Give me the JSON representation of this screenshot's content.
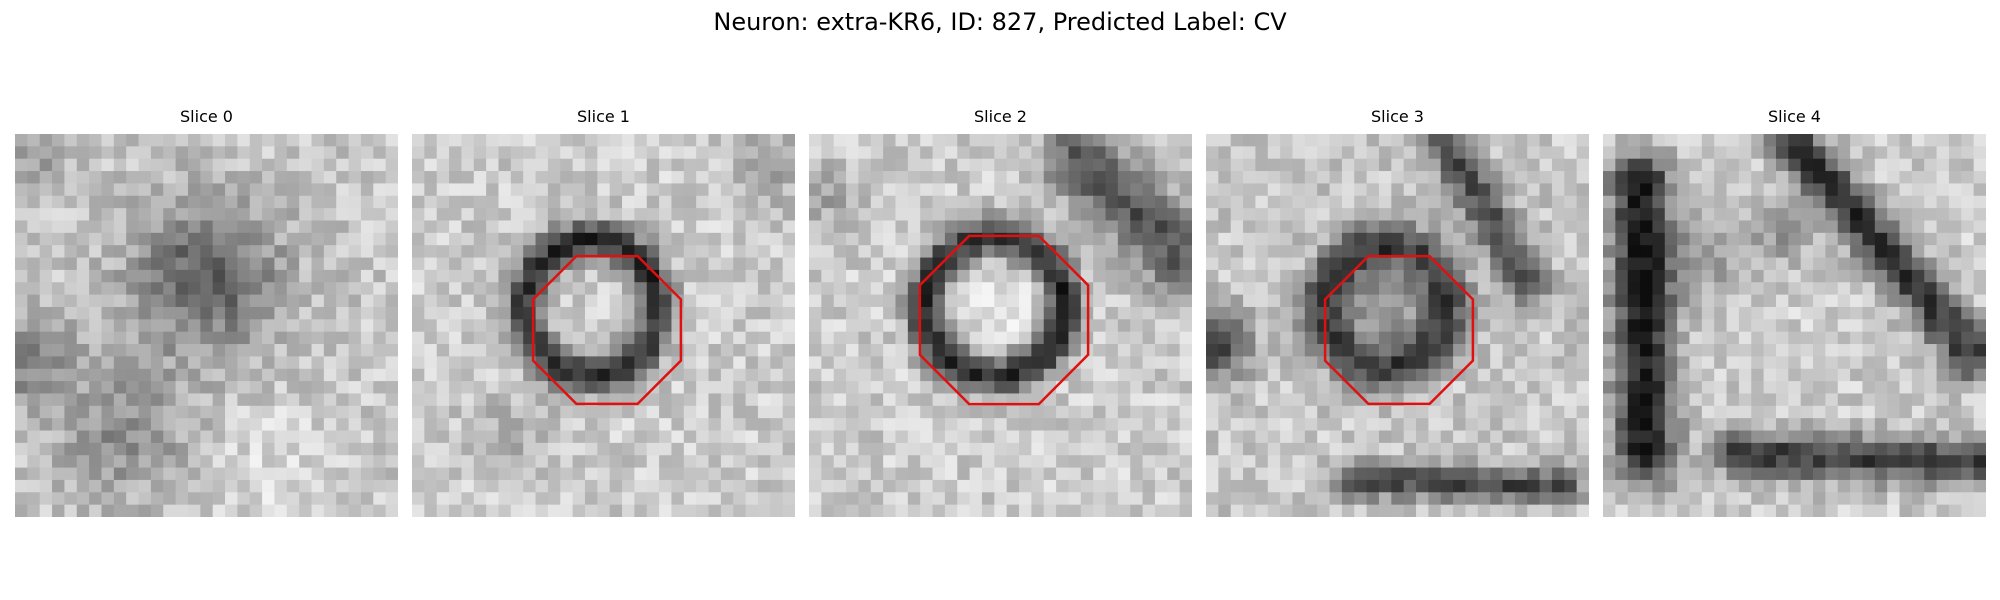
{
  "figure": {
    "title": "Neuron: extra-KR6, ID: 827, Predicted Label: CV"
  },
  "overlay_color": "#e01010",
  "slices": [
    {
      "title": "Slice 0",
      "has_contour": false
    },
    {
      "title": "Slice 1",
      "has_contour": true
    },
    {
      "title": "Slice 2",
      "has_contour": true
    },
    {
      "title": "Slice 3",
      "has_contour": true
    },
    {
      "title": "Slice 4",
      "has_contour": false
    }
  ]
}
